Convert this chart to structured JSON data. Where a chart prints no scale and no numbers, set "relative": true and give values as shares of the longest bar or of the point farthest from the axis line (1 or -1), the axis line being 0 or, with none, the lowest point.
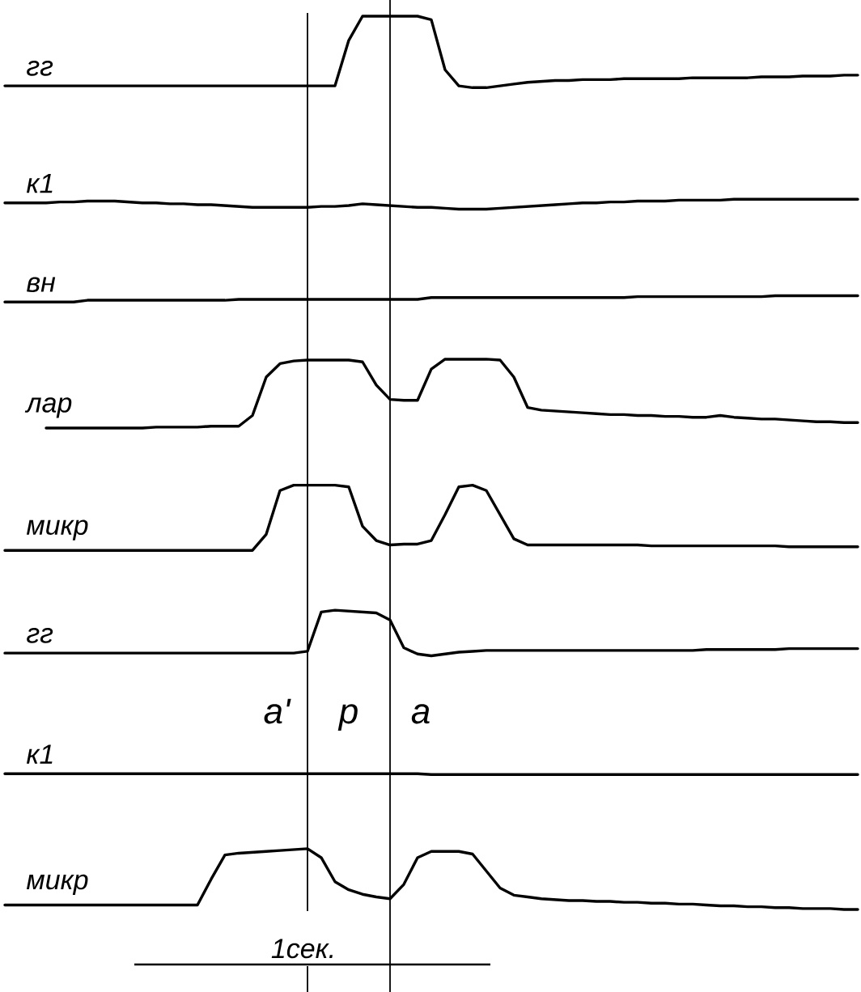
{
  "chart_data": {
    "type": "line",
    "relative": true,
    "line_style": "solid",
    "categories": [
      null,
      null,
      null,
      null,
      null,
      null,
      null,
      null,
      null,
      null,
      null,
      null,
      null,
      null,
      null,
      null,
      null,
      null,
      null,
      null,
      null,
      null,
      null,
      null,
      null,
      null,
      null,
      null,
      null,
      null,
      null,
      null,
      null,
      null,
      null,
      null,
      null,
      null,
      null,
      null,
      null,
      null,
      null,
      null,
      null,
      null,
      null,
      null,
      null,
      null,
      null,
      null,
      null,
      null,
      null,
      null,
      null,
      null,
      null,
      null,
      null,
      null,
      null
    ],
    "series": [
      {
        "name": "гг",
        "color": "#000000",
        "values": [
          0.922,
          0.922,
          0.922,
          0.922,
          0.922,
          0.922,
          0.922,
          0.922,
          0.922,
          0.922,
          0.922,
          0.922,
          0.922,
          0.922,
          0.922,
          0.922,
          0.922,
          0.922,
          0.922,
          0.922,
          0.922,
          0.922,
          0.922,
          0.922,
          0.922,
          0.973,
          1.0,
          1.0,
          1.0,
          1.0,
          1.0,
          0.996,
          0.94,
          0.922,
          0.92,
          0.92,
          0.922,
          0.924,
          0.926,
          0.927,
          0.928,
          0.928,
          0.929,
          0.929,
          0.929,
          0.93,
          0.93,
          0.93,
          0.93,
          0.93,
          0.931,
          0.931,
          0.931,
          0.931,
          0.931,
          0.932,
          0.932,
          0.932,
          0.933,
          0.933,
          0.933,
          0.934,
          0.934
        ]
      },
      {
        "name": "к1",
        "color": "#000000",
        "values": [
          0.791,
          0.791,
          0.791,
          0.791,
          0.792,
          0.792,
          0.793,
          0.793,
          0.793,
          0.792,
          0.791,
          0.791,
          0.79,
          0.79,
          0.789,
          0.789,
          0.788,
          0.787,
          0.786,
          0.786,
          0.786,
          0.786,
          0.786,
          0.787,
          0.787,
          0.788,
          0.79,
          0.789,
          0.788,
          0.787,
          0.786,
          0.786,
          0.785,
          0.784,
          0.784,
          0.784,
          0.785,
          0.786,
          0.787,
          0.788,
          0.789,
          0.79,
          0.791,
          0.791,
          0.792,
          0.792,
          0.793,
          0.793,
          0.793,
          0.794,
          0.794,
          0.794,
          0.794,
          0.795,
          0.795,
          0.795,
          0.795,
          0.795,
          0.795,
          0.795,
          0.795,
          0.795,
          0.795
        ]
      },
      {
        "name": "вн",
        "color": "#000000",
        "values": [
          0.68,
          0.68,
          0.68,
          0.68,
          0.68,
          0.68,
          0.682,
          0.682,
          0.682,
          0.682,
          0.682,
          0.682,
          0.682,
          0.682,
          0.682,
          0.682,
          0.682,
          0.683,
          0.683,
          0.683,
          0.683,
          0.683,
          0.683,
          0.683,
          0.683,
          0.683,
          0.683,
          0.683,
          0.683,
          0.683,
          0.683,
          0.685,
          0.685,
          0.685,
          0.685,
          0.685,
          0.685,
          0.685,
          0.685,
          0.685,
          0.685,
          0.685,
          0.685,
          0.685,
          0.685,
          0.685,
          0.686,
          0.686,
          0.686,
          0.686,
          0.686,
          0.686,
          0.686,
          0.686,
          0.686,
          0.686,
          0.687,
          0.687,
          0.687,
          0.687,
          0.687,
          0.687,
          0.687
        ]
      },
      {
        "name": "лар",
        "color": "#000000",
        "values": [
          null,
          null,
          null,
          0.539,
          0.539,
          0.539,
          0.539,
          0.539,
          0.539,
          0.539,
          0.539,
          0.54,
          0.54,
          0.54,
          0.54,
          0.541,
          0.541,
          0.541,
          0.553,
          0.596,
          0.611,
          0.614,
          0.615,
          0.615,
          0.615,
          0.615,
          0.613,
          0.587,
          0.571,
          0.57,
          0.57,
          0.605,
          0.616,
          0.616,
          0.616,
          0.616,
          0.615,
          0.596,
          0.562,
          0.559,
          0.558,
          0.557,
          0.556,
          0.555,
          0.554,
          0.554,
          0.553,
          0.553,
          0.552,
          0.552,
          0.551,
          0.551,
          0.553,
          0.551,
          0.55,
          0.549,
          0.549,
          0.548,
          0.547,
          0.546,
          0.546,
          0.545,
          0.545
        ]
      },
      {
        "name": "микр",
        "color": "#000000",
        "values": [
          0.402,
          0.402,
          0.402,
          0.402,
          0.402,
          0.402,
          0.402,
          0.402,
          0.402,
          0.402,
          0.402,
          0.402,
          0.402,
          0.402,
          0.402,
          0.402,
          0.402,
          0.402,
          0.402,
          0.42,
          0.469,
          0.475,
          0.475,
          0.475,
          0.475,
          0.473,
          0.429,
          0.413,
          0.408,
          0.409,
          0.409,
          0.413,
          0.442,
          0.473,
          0.475,
          0.469,
          0.442,
          0.415,
          0.408,
          0.408,
          0.408,
          0.408,
          0.408,
          0.408,
          0.408,
          0.408,
          0.408,
          0.407,
          0.407,
          0.407,
          0.407,
          0.407,
          0.407,
          0.407,
          0.407,
          0.407,
          0.407,
          0.406,
          0.406,
          0.406,
          0.406,
          0.406,
          0.406
        ]
      },
      {
        "name": "гг",
        "color": "#000000",
        "values": [
          0.287,
          0.287,
          0.287,
          0.287,
          0.287,
          0.287,
          0.287,
          0.287,
          0.287,
          0.287,
          0.287,
          0.287,
          0.287,
          0.287,
          0.287,
          0.287,
          0.287,
          0.287,
          0.287,
          0.287,
          0.287,
          0.287,
          0.289,
          0.333,
          0.335,
          0.334,
          0.333,
          0.332,
          0.324,
          0.293,
          0.286,
          0.284,
          0.286,
          0.288,
          0.289,
          0.29,
          0.29,
          0.29,
          0.29,
          0.29,
          0.29,
          0.29,
          0.29,
          0.29,
          0.29,
          0.29,
          0.29,
          0.29,
          0.29,
          0.29,
          0.29,
          0.291,
          0.291,
          0.291,
          0.291,
          0.291,
          0.291,
          0.292,
          0.292,
          0.292,
          0.292,
          0.292,
          0.292
        ]
      },
      {
        "name": "к1",
        "color": "#000000",
        "values": [
          0.152,
          0.152,
          0.152,
          0.152,
          0.152,
          0.152,
          0.152,
          0.152,
          0.152,
          0.152,
          0.152,
          0.152,
          0.152,
          0.152,
          0.152,
          0.152,
          0.152,
          0.152,
          0.152,
          0.152,
          0.152,
          0.152,
          0.152,
          0.152,
          0.152,
          0.152,
          0.152,
          0.152,
          0.152,
          0.152,
          0.152,
          0.151,
          0.151,
          0.151,
          0.151,
          0.151,
          0.151,
          0.151,
          0.151,
          0.151,
          0.151,
          0.151,
          0.151,
          0.151,
          0.151,
          0.151,
          0.151,
          0.151,
          0.151,
          0.151,
          0.151,
          0.151,
          0.151,
          0.151,
          0.151,
          0.151,
          0.151,
          0.151,
          0.151,
          0.151,
          0.151,
          0.151,
          0.151
        ]
      },
      {
        "name": "микр",
        "color": "#000000",
        "values": [
          0.005,
          0.005,
          0.005,
          0.005,
          0.005,
          0.005,
          0.005,
          0.005,
          0.005,
          0.005,
          0.005,
          0.005,
          0.005,
          0.005,
          0.005,
          0.034,
          0.061,
          0.063,
          0.064,
          0.065,
          0.066,
          0.067,
          0.068,
          0.058,
          0.031,
          0.022,
          0.017,
          0.014,
          0.012,
          0.028,
          0.058,
          0.065,
          0.065,
          0.065,
          0.062,
          0.043,
          0.024,
          0.016,
          0.014,
          0.012,
          0.011,
          0.01,
          0.01,
          0.009,
          0.009,
          0.008,
          0.008,
          0.007,
          0.007,
          0.006,
          0.006,
          0.005,
          0.004,
          0.004,
          0.003,
          0.003,
          0.002,
          0.002,
          0.001,
          0.001,
          0.001,
          0,
          0
        ]
      }
    ],
    "annotations": [
      "а'",
      "р",
      "а",
      "1сек."
    ]
  }
}
